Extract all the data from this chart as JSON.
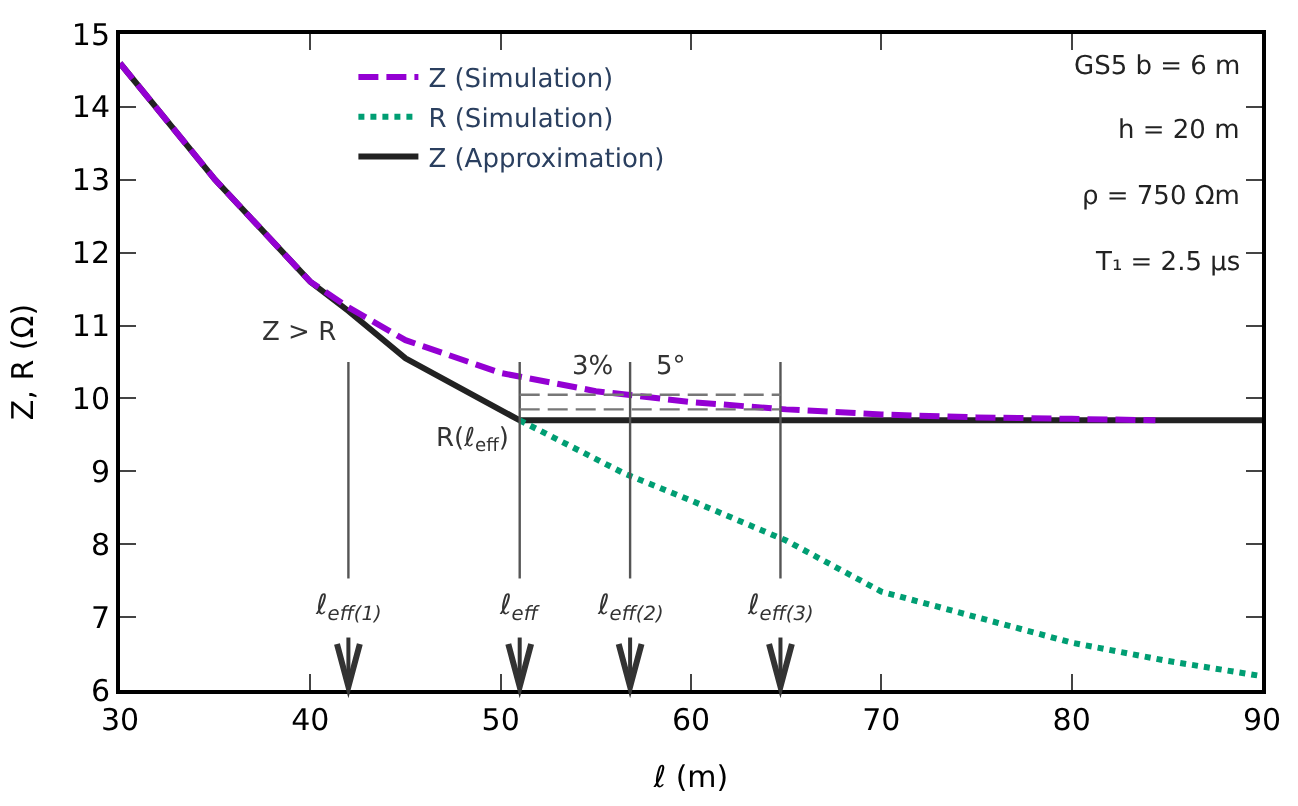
{
  "chart_data": {
    "type": "line",
    "xlabel": "ℓ (m)",
    "ylabel": "Z, R (Ω)",
    "xlim": [
      30,
      90
    ],
    "xticks": [
      30,
      40,
      50,
      60,
      70,
      80,
      90
    ],
    "ylim": [
      6,
      15
    ],
    "yticks": [
      6,
      7,
      8,
      9,
      10,
      11,
      12,
      13,
      14,
      15
    ],
    "legend": "top",
    "marker": "none",
    "series": [
      {
        "name": "Z (Simulation)",
        "color": "#9400d3",
        "line_style": "dashed",
        "x": [
          30,
          35,
          40,
          42,
          45,
          50,
          55,
          60,
          65,
          70,
          75,
          80,
          84.4
        ],
        "values": [
          14.6,
          13.0,
          11.6,
          11.25,
          10.8,
          10.35,
          10.1,
          9.95,
          9.85,
          9.78,
          9.74,
          9.72,
          9.7
        ]
      },
      {
        "name": "R (Simulation)",
        "color": "#009e73",
        "line_style": "dotted",
        "x": [
          51,
          56.5,
          60,
          65,
          70,
          75,
          80,
          85,
          90
        ],
        "values": [
          9.7,
          8.97,
          8.6,
          8.05,
          7.35,
          7.0,
          6.65,
          6.4,
          6.19
        ]
      },
      {
        "name": "Z (Approximation)",
        "color": "#222222",
        "line_style": "solid",
        "x": [
          30,
          35,
          40,
          42,
          45,
          51,
          90
        ],
        "values": [
          14.6,
          13.0,
          11.6,
          11.2,
          10.55,
          9.7,
          9.7
        ]
      }
    ],
    "ref_lines": [
      {
        "axis": "x",
        "value": 42,
        "label": "ℓ$_{eff(1)}$",
        "color": "#555555",
        "line_style": "solid"
      },
      {
        "axis": "x",
        "value": 51,
        "label": "ℓ$_{eff}$",
        "color": "#555555",
        "line_style": "solid"
      },
      {
        "axis": "x",
        "value": 56.8,
        "label": "ℓ$_{eff(2)}$",
        "color": "#555555",
        "line_style": "solid"
      },
      {
        "axis": "x",
        "value": 64.7,
        "label": "ℓ$_{eff(3)}$",
        "color": "#555555",
        "line_style": "solid"
      },
      {
        "axis": "y",
        "value": 10.05,
        "label": null,
        "color": "#777777",
        "line_style": "dashed"
      },
      {
        "axis": "y",
        "value": 9.85,
        "label": null,
        "color": "#777777",
        "line_style": "dashed"
      }
    ],
    "annotations": [
      {
        "text": "Z > R",
        "x": 42,
        "y": 11.2
      },
      {
        "text": "R(ℓ$_{eff}$)",
        "x": 51,
        "y": 9.1
      },
      {
        "text": "3%",
        "x": 56.6,
        "y": 10.15
      },
      {
        "text": "5°",
        "x": 60.4,
        "y": 10.15
      },
      "GS5 b = 6 m",
      "h = 20 m",
      "ρ = 750 Ωm",
      "T₁ = 2.5 μs"
    ]
  }
}
